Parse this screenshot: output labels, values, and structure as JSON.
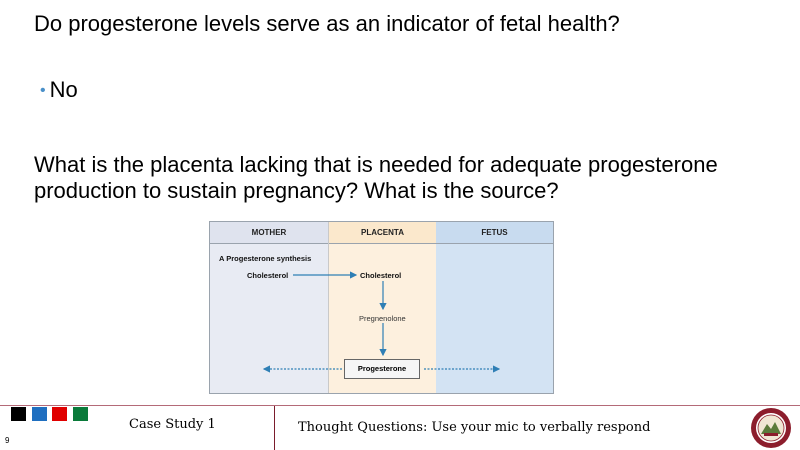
{
  "slide": {
    "question1": "Do progesterone levels serve as an indicator of fetal health?",
    "bullet_mark": "•",
    "answer1": "No",
    "question2": "What is the placenta lacking that is needed for adequate progesterone production to sustain pregnancy?  What is the source?"
  },
  "figure": {
    "columns": [
      "MOTHER",
      "PLACENTA",
      "FETUS"
    ],
    "panel_label": "A",
    "panel_title": "Progesterone synthesis",
    "mother_item": "Cholesterol",
    "placenta_item1": "Cholesterol",
    "placenta_item2": "Pregnenolone",
    "placenta_item3": "Progesterone",
    "colors": {
      "mother": "#e8ebf3",
      "placenta": "#fdf0de",
      "fetus": "#d3e3f3",
      "arrow": "#2f7fb5"
    }
  },
  "footer": {
    "page_number": "9",
    "left_title": "Case Study 1",
    "right_title": "Thought Questions: Use your mic to verbally respond",
    "square_colors": [
      "#000000",
      "#1f6fc0",
      "#e00000",
      "#0a7a3a"
    ],
    "seal_icon": "university-seal-icon"
  }
}
